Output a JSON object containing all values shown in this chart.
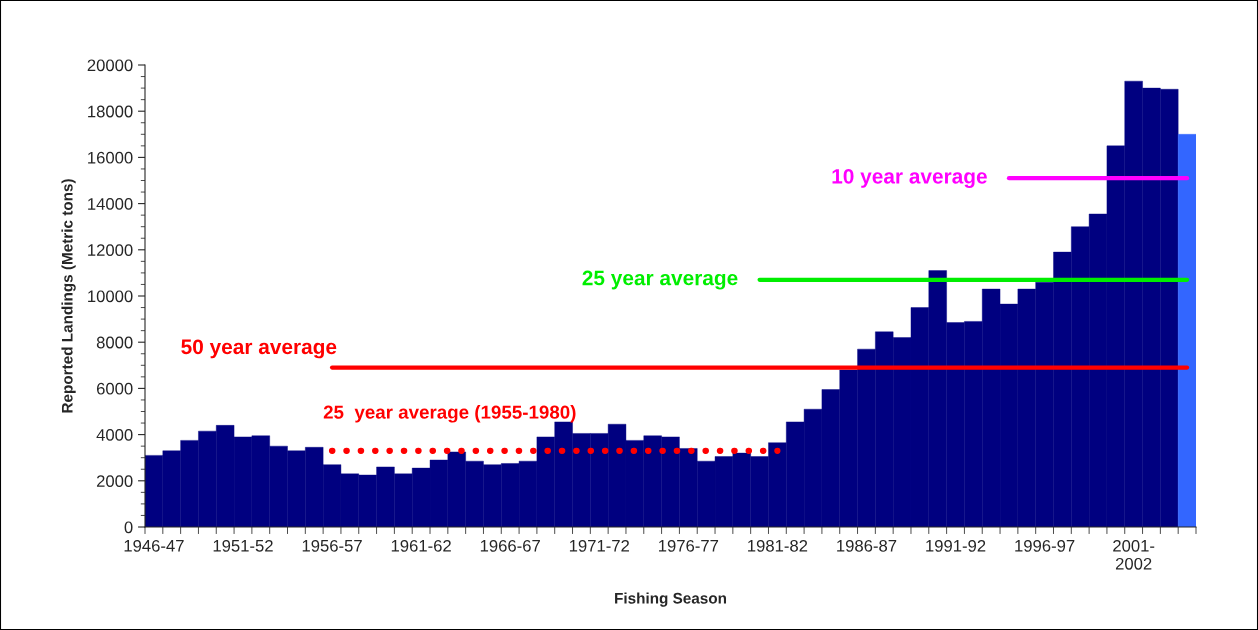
{
  "chart_data": {
    "type": "bar",
    "xlabel": "Fishing Season",
    "ylabel": "Reported Landings (Metric tons)",
    "categories": [
      "1946-47",
      null,
      null,
      null,
      null,
      "1951-52",
      null,
      null,
      null,
      null,
      "1956-57",
      null,
      null,
      null,
      null,
      "1961-62",
      null,
      null,
      null,
      null,
      "1966-67",
      null,
      null,
      null,
      null,
      "1971-72",
      null,
      null,
      null,
      null,
      "1976-77",
      null,
      null,
      null,
      null,
      "1981-82",
      null,
      null,
      null,
      null,
      "1986-87",
      null,
      null,
      null,
      null,
      "1991-92",
      null,
      null,
      null,
      null,
      "1996-97",
      null,
      null,
      null,
      null,
      "2001-\n2002",
      null,
      null,
      null
    ],
    "ylim": [
      0,
      20000
    ],
    "yticks": [
      0,
      2000,
      4000,
      6000,
      8000,
      10000,
      12000,
      14000,
      16000,
      18000,
      20000
    ],
    "grid": false,
    "legend": false,
    "series": [
      {
        "color": "#000080",
        "colors": [
          "#000080",
          "#000080",
          "#000080",
          "#000080",
          "#000080",
          "#000080",
          "#000080",
          "#000080",
          "#000080",
          "#000080",
          "#000080",
          "#000080",
          "#000080",
          "#000080",
          "#000080",
          "#000080",
          "#000080",
          "#000080",
          "#000080",
          "#000080",
          "#000080",
          "#000080",
          "#000080",
          "#000080",
          "#000080",
          "#000080",
          "#000080",
          "#000080",
          "#000080",
          "#000080",
          "#000080",
          "#000080",
          "#000080",
          "#000080",
          "#000080",
          "#000080",
          "#000080",
          "#000080",
          "#000080",
          "#000080",
          "#000080",
          "#000080",
          "#000080",
          "#000080",
          "#000080",
          "#000080",
          "#000080",
          "#000080",
          "#000080",
          "#000080",
          "#000080",
          "#000080",
          "#000080",
          "#000080",
          "#000080",
          "#000080",
          "#000080",
          "#000080",
          "#3366ff"
        ],
        "values": [
          3100,
          3300,
          3750,
          4150,
          4400,
          3900,
          3950,
          3500,
          3300,
          3450,
          2700,
          2300,
          2250,
          2600,
          2300,
          2550,
          2900,
          3250,
          2850,
          2700,
          2750,
          2850,
          3900,
          4550,
          4050,
          4050,
          4450,
          3750,
          3950,
          3900,
          3400,
          2850,
          3050,
          3200,
          3050,
          3650,
          4550,
          5100,
          5950,
          6800,
          7700,
          8450,
          8200,
          9500,
          11100,
          8850,
          8900,
          10300,
          9650,
          10300,
          10600,
          11900,
          13000,
          13550,
          16500,
          19300,
          19000,
          18950,
          17000
        ]
      },
      {
        "type": "line",
        "name": "50 year average",
        "color": "#ff0000",
        "line_style": "solid",
        "values": [
          null,
          null,
          null,
          null,
          null,
          null,
          null,
          null,
          null,
          null,
          6900,
          6900,
          6900,
          6900,
          6900,
          6900,
          6900,
          6900,
          6900,
          6900,
          6900,
          6900,
          6900,
          6900,
          6900,
          6900,
          6900,
          6900,
          6900,
          6900,
          6900,
          6900,
          6900,
          6900,
          6900,
          6900,
          6900,
          6900,
          6900,
          6900,
          6900,
          6900,
          6900,
          6900,
          6900,
          6900,
          6900,
          6900,
          6900,
          6900,
          6900,
          6900,
          6900,
          6900,
          6900,
          6900,
          6900,
          6900,
          6900
        ]
      },
      {
        "type": "line",
        "name": "25  year average (1955-1980)",
        "color": "#ff0000",
        "line_style": "dotted",
        "values": [
          null,
          null,
          null,
          null,
          null,
          null,
          null,
          null,
          null,
          null,
          3300,
          3300,
          3300,
          3300,
          3300,
          3300,
          3300,
          3300,
          3300,
          3300,
          3300,
          3300,
          3300,
          3300,
          3300,
          3300,
          3300,
          3300,
          3300,
          3300,
          3300,
          3300,
          3300,
          3300,
          3300,
          3300,
          null,
          null,
          null,
          null,
          null,
          null,
          null,
          null,
          null,
          null,
          null,
          null,
          null,
          null,
          null,
          null,
          null,
          null,
          null,
          null,
          null,
          null,
          null
        ]
      },
      {
        "type": "line",
        "name": "25 year average",
        "color": "#00ee00",
        "line_style": "solid",
        "values": [
          null,
          null,
          null,
          null,
          null,
          null,
          null,
          null,
          null,
          null,
          null,
          null,
          null,
          null,
          null,
          null,
          null,
          null,
          null,
          null,
          null,
          null,
          null,
          null,
          null,
          null,
          null,
          null,
          null,
          null,
          null,
          null,
          null,
          null,
          10700,
          10700,
          10700,
          10700,
          10700,
          10700,
          10700,
          10700,
          10700,
          10700,
          10700,
          10700,
          10700,
          10700,
          10700,
          10700,
          10700,
          10700,
          10700,
          10700,
          10700,
          10700,
          10700,
          10700,
          10700
        ]
      },
      {
        "type": "line",
        "name": "10 year average",
        "color": "#ff00ff",
        "line_style": "solid",
        "values": [
          null,
          null,
          null,
          null,
          null,
          null,
          null,
          null,
          null,
          null,
          null,
          null,
          null,
          null,
          null,
          null,
          null,
          null,
          null,
          null,
          null,
          null,
          null,
          null,
          null,
          null,
          null,
          null,
          null,
          null,
          null,
          null,
          null,
          null,
          null,
          null,
          null,
          null,
          null,
          null,
          null,
          null,
          null,
          null,
          null,
          null,
          null,
          null,
          15100,
          15100,
          15100,
          15100,
          15100,
          15100,
          15100,
          15100,
          15100,
          15100,
          15100
        ]
      }
    ]
  }
}
